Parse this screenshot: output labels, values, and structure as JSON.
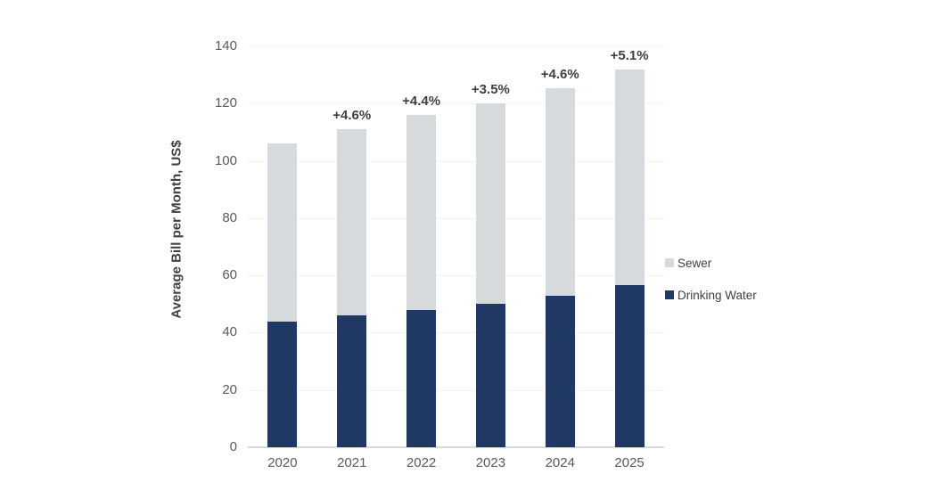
{
  "chart_data": {
    "type": "bar",
    "stacked": true,
    "title": "",
    "ylabel": "Average Bill per Month, US$",
    "xlabel": "",
    "categories": [
      "2020",
      "2021",
      "2022",
      "2023",
      "2024",
      "2025"
    ],
    "series": [
      {
        "name": "Drinking Water",
        "color": "#203864",
        "values": [
          44,
          46,
          48,
          50,
          53,
          56.5
        ]
      },
      {
        "name": "Sewer",
        "color": "#d6dadd",
        "values": [
          62,
          65,
          68,
          70,
          72.5,
          75.5
        ]
      }
    ],
    "totals": [
      106,
      111,
      116,
      120,
      125.5,
      132
    ],
    "annotations": [
      "",
      "+4.6%",
      "+4.4%",
      "+3.5%",
      "+4.6%",
      "+5.1%"
    ],
    "yticks": [
      0,
      20,
      40,
      60,
      80,
      100,
      120,
      140
    ],
    "ylim": [
      0,
      140
    ],
    "grid": true,
    "legend_position": "right",
    "legend": [
      {
        "label": "Sewer",
        "color": "#d6dadd"
      },
      {
        "label": "Drinking Water",
        "color": "#203864"
      }
    ],
    "colors": {
      "background": "#ffffff",
      "annotation_text": "#404040",
      "tick_text": "#595959",
      "axis_line": "#d9d9d9",
      "gridline": "#f4f4f4"
    }
  }
}
